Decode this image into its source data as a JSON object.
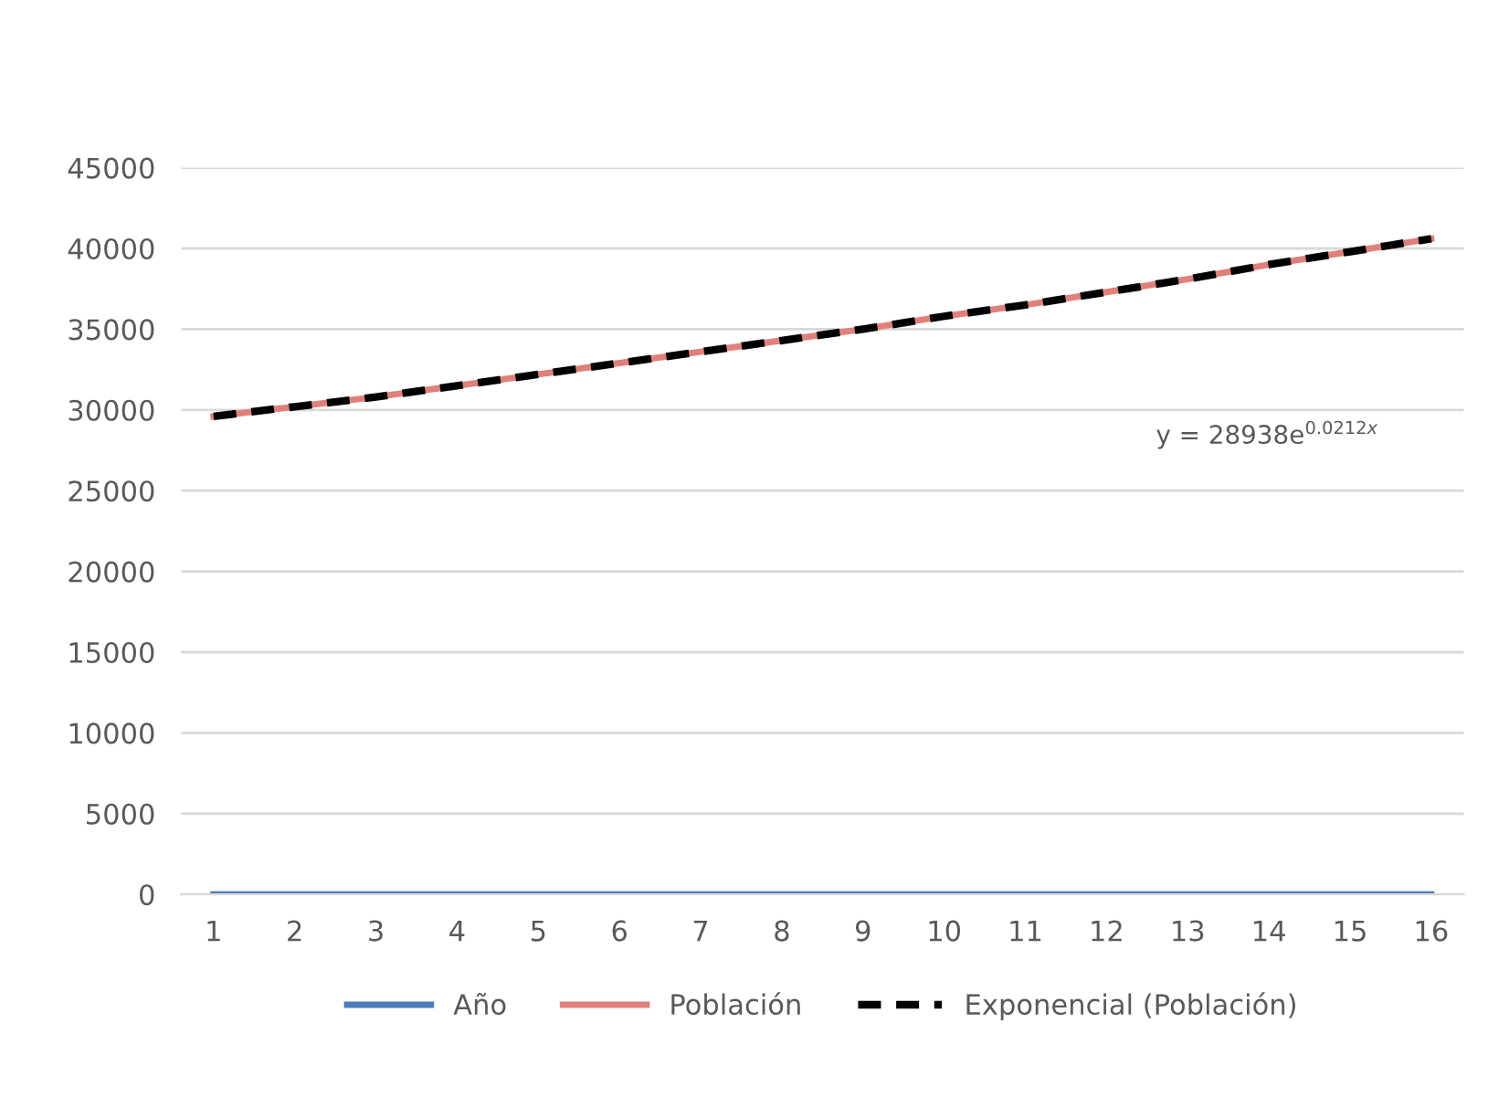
{
  "chart_data": {
    "type": "line",
    "x": [
      1,
      2,
      3,
      4,
      5,
      6,
      7,
      8,
      9,
      10,
      11,
      12,
      13,
      14,
      15,
      16
    ],
    "series": [
      {
        "name": "Año",
        "color": "#4a7ebb",
        "values": [
          0,
          0,
          0,
          0,
          0,
          0,
          0,
          0,
          0,
          0,
          0,
          0,
          0,
          0,
          0,
          0
        ]
      },
      {
        "name": "Población",
        "color": "#e0807a",
        "values": [
          29600,
          30200,
          30800,
          31500,
          32200,
          32900,
          33600,
          34300,
          35000,
          35800,
          36500,
          37300,
          38100,
          39000,
          39800,
          40600
        ]
      },
      {
        "name": "Exponencial (Población)",
        "color": "#000000",
        "line_style": "dashed",
        "values": [
          29600,
          30200,
          30800,
          31500,
          32200,
          32900,
          33600,
          34300,
          35000,
          35800,
          36500,
          37300,
          38100,
          39000,
          39800,
          40600
        ]
      }
    ],
    "xlim": [
      0.6,
      16.4
    ],
    "xticks": [
      1,
      2,
      3,
      4,
      5,
      6,
      7,
      8,
      9,
      10,
      11,
      12,
      13,
      14,
      15,
      16
    ],
    "ylim": [
      0,
      45000
    ],
    "yticks": [
      0,
      5000,
      10000,
      15000,
      20000,
      25000,
      30000,
      35000,
      40000,
      45000
    ],
    "annotations": [
      "y = 28938e$^{0.0212x}$"
    ],
    "grid": "y",
    "legend": "bottom",
    "marker": "none"
  }
}
